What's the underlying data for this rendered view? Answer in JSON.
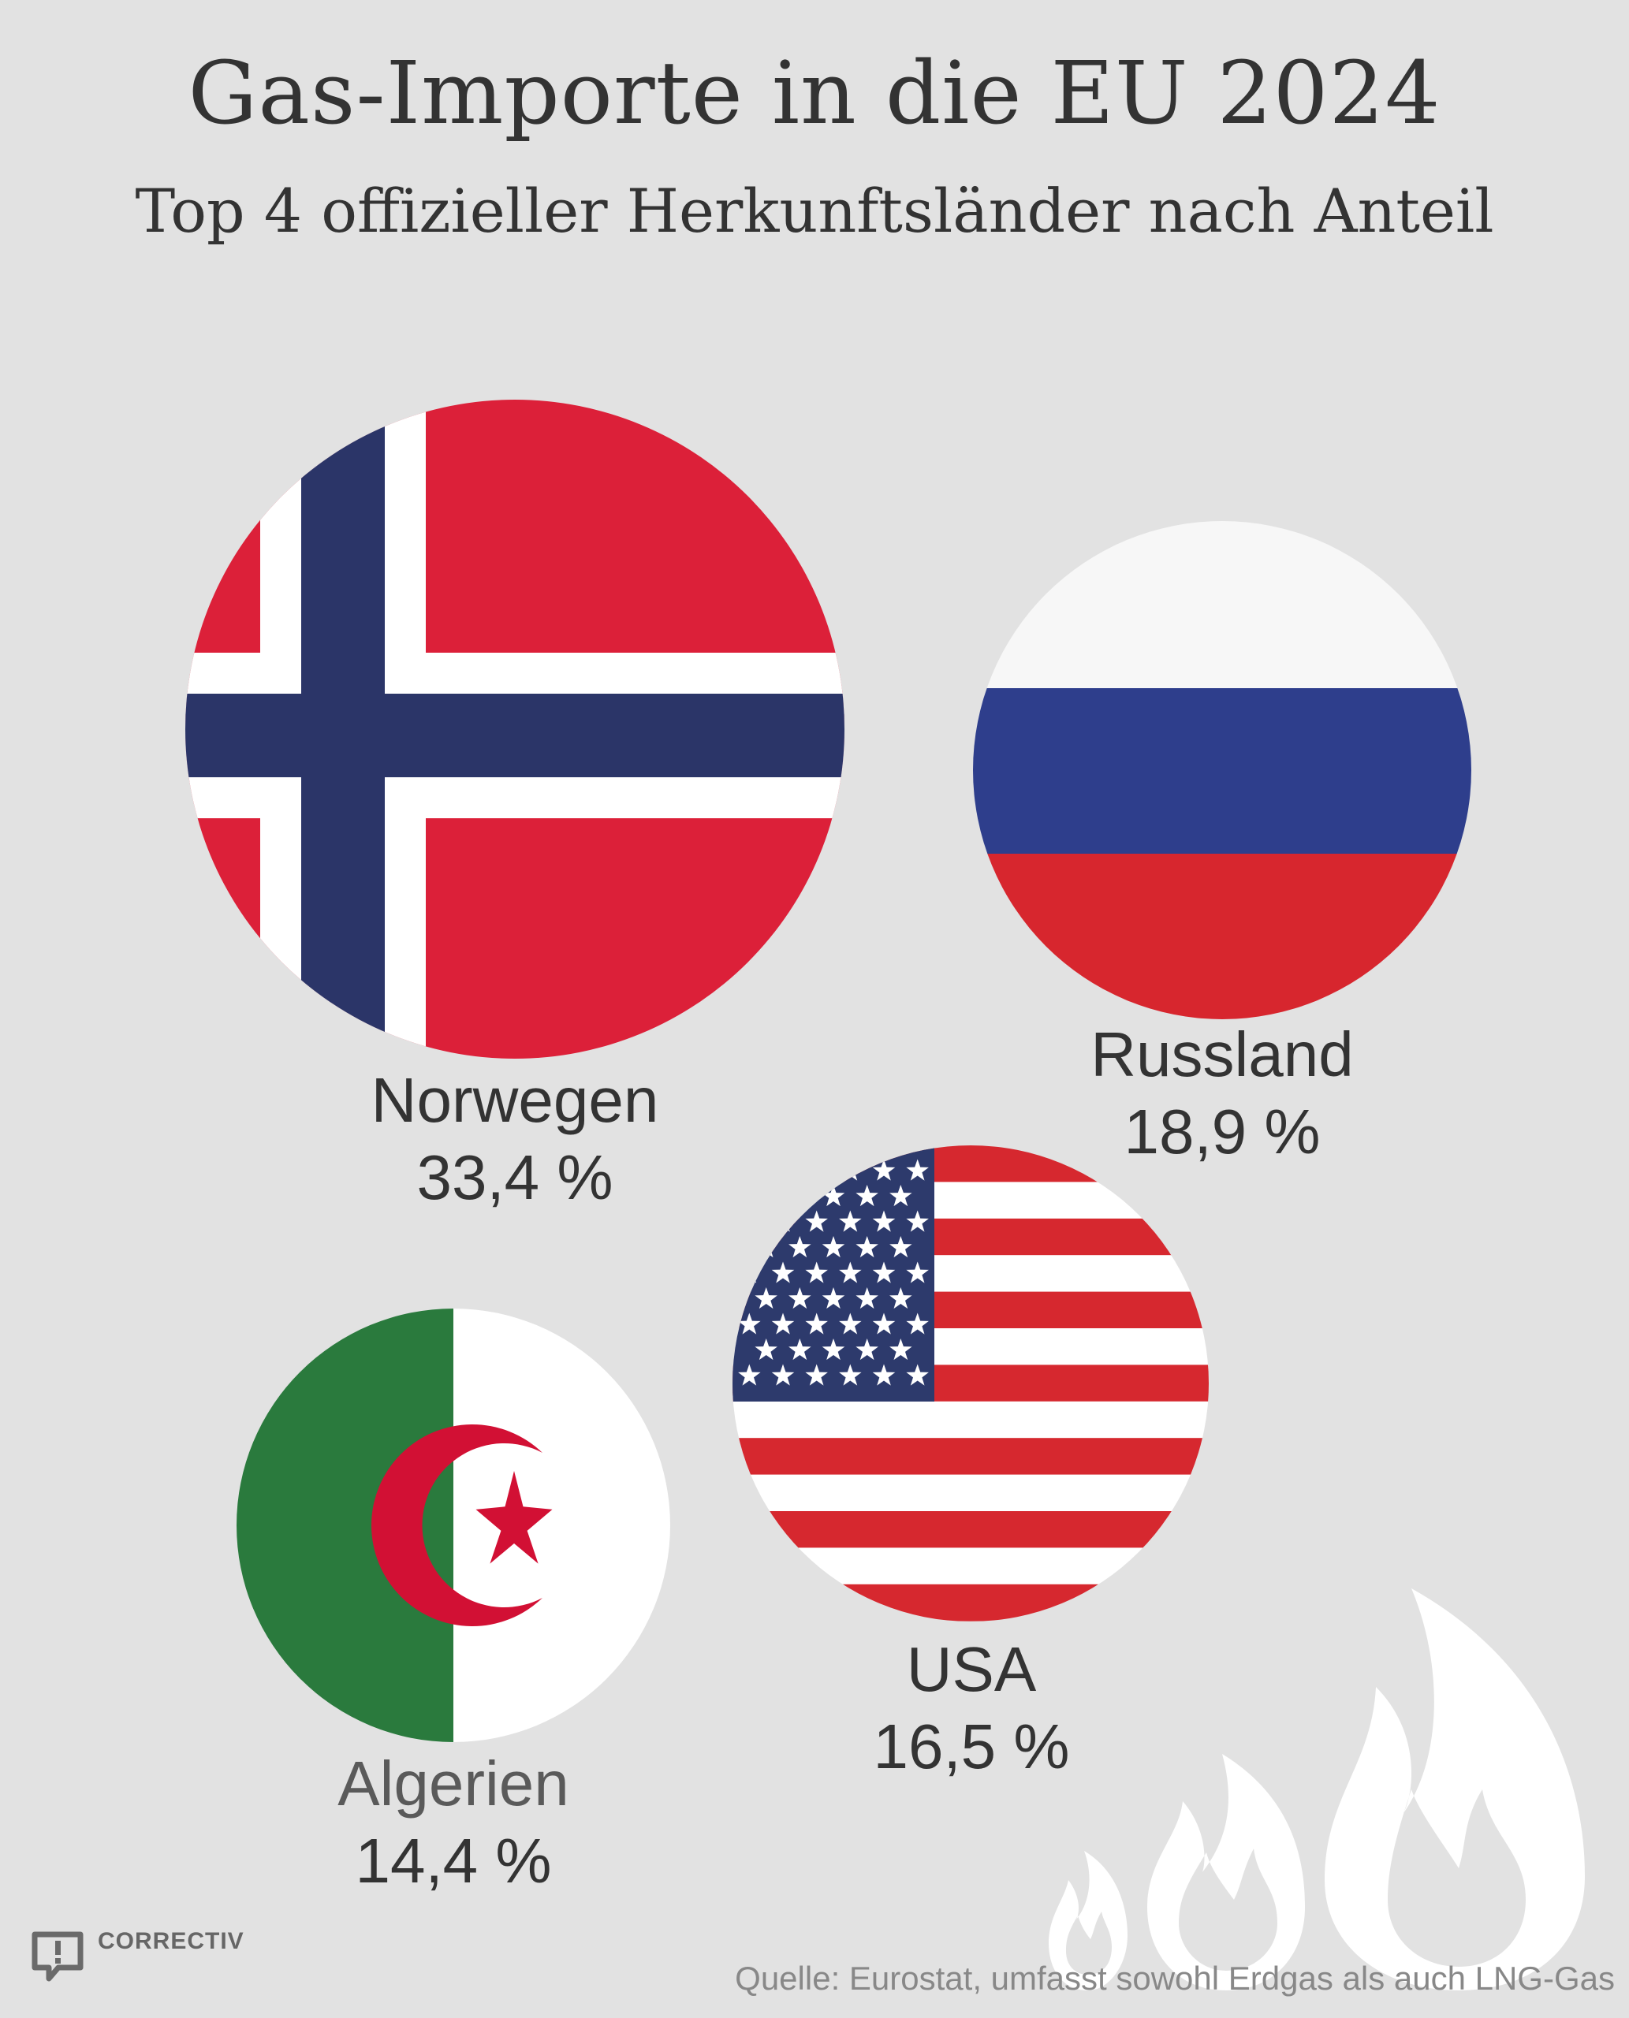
{
  "title": "Gas-Importe in die EU 2024",
  "subtitle": "Top 4 offizieller Herkunftsländer nach Anteil",
  "source": "Quelle: Eurostat, umfasst sowohl Erdgas als auch LNG-Gas",
  "logo_text": "CORRECTIV",
  "colors": {
    "background": "#e2e2e2",
    "text": "#333333",
    "no_red": "#dc2039",
    "no_blue": "#2b3568",
    "ru_blue": "#2e3e8c",
    "ru_red": "#d7262e",
    "us_red": "#d6282f",
    "us_blue": "#2d3a6c",
    "dz_green": "#2a7a3d",
    "dz_red": "#d21034",
    "flame": "#ffffff"
  },
  "chart_data": {
    "type": "bubble",
    "title": "Gas-Importe in die EU 2024",
    "subtitle": "Top 4 offizieller Herkunftsländer nach Anteil",
    "unit": "%",
    "categories": [
      "Norwegen",
      "Russland",
      "USA",
      "Algerien"
    ],
    "values": [
      33.4,
      18.9,
      16.5,
      14.4
    ],
    "labels": [
      "33,4 %",
      "18,9 %",
      "16,5 %",
      "14,4 %"
    ],
    "icons": [
      "norway-flag",
      "russia-flag",
      "usa-flag",
      "algeria-flag"
    ]
  }
}
